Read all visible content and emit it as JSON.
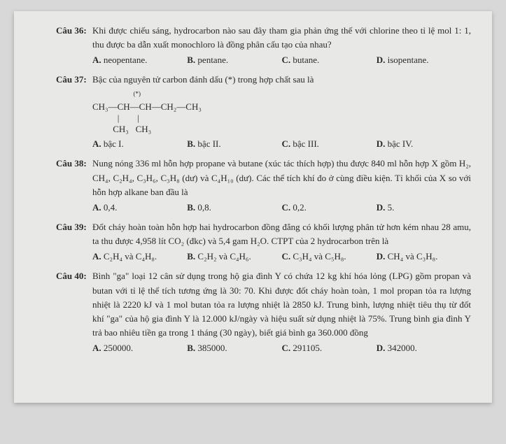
{
  "page": {
    "background_color": "#d8d8d8",
    "paper_color": "#e8e8e6",
    "text_color": "#2a2a2a",
    "font_family": "Times New Roman",
    "base_fontsize": 13,
    "shadow_color": "rgba(0,0,0,0.25)"
  },
  "questions": [
    {
      "label": "Câu 36:",
      "text": "Khi được chiếu sáng, hydrocarbon nào sau đây tham gia phản ứng thế với chlorine theo tỉ lệ mol 1: 1, thu được ba dẫn xuất monochloro là đồng phân cấu tạo của nhau?",
      "options": [
        {
          "letter": "A.",
          "text": "neopentane."
        },
        {
          "letter": "B.",
          "text": "pentane."
        },
        {
          "letter": "C.",
          "text": "butane."
        },
        {
          "letter": "D.",
          "text": "isopentane."
        }
      ]
    },
    {
      "label": "Câu 37:",
      "text": "Bậc của nguyên tử carbon đánh dấu (*) trong hợp chất sau là",
      "formula": {
        "row1": "CH₃—CH—CH—CH₂—CH₃",
        "star_over_index": 2,
        "row2": "           |        |",
        "row3": "         CH₃   CH₃"
      },
      "options": [
        {
          "letter": "A.",
          "text": "bậc I."
        },
        {
          "letter": "B.",
          "text": "bậc II."
        },
        {
          "letter": "C.",
          "text": "bậc III."
        },
        {
          "letter": "D.",
          "text": "bậc IV."
        }
      ]
    },
    {
      "label": "Câu 38:",
      "text": "Nung nóng 336 ml hỗn hợp propane và butane (xúc tác thích hợp) thu được 840 ml hỗn hợp X gồm H₂, CH₄, C₂H₄, C₃H₆, C₃H₈ (dư) và C₄H₁₀ (dư). Các thể tích khí đo ở cùng điều kiện. Tỉ khối của X so với hỗn hợp alkane ban đầu là",
      "options": [
        {
          "letter": "A.",
          "text": "0,4."
        },
        {
          "letter": "B.",
          "text": "0,8."
        },
        {
          "letter": "C.",
          "text": "0,2."
        },
        {
          "letter": "D.",
          "text": "5."
        }
      ]
    },
    {
      "label": "Câu 39:",
      "text": "Đốt cháy hoàn toàn hỗn hợp hai hydrocarbon đồng đẳng có khối lượng phân tử hơn kém nhau 28 amu, ta thu được 4,958 lít CO₂ (đkc) và 5,4 gam H₂O. CTPT của 2 hydrocarbon trên là",
      "options": [
        {
          "letter": "A.",
          "text": "C₂H₄ và C₄H₈."
        },
        {
          "letter": "B.",
          "text": "C₂H₂ và C₄H₆."
        },
        {
          "letter": "C.",
          "text": "C₃H₄ và C₅H₈."
        },
        {
          "letter": "D.",
          "text": "CH₄ và C₃H₈."
        }
      ]
    },
    {
      "label": "Câu 40:",
      "text": "Bình \"ga\" loại 12 cân sử dụng trong hộ gia đình Y có chứa 12 kg khí hóa lỏng (LPG) gồm propan và butan với tỉ lệ thể tích tương ứng là 30: 70. Khi được đốt cháy hoàn toàn, 1 mol propan tỏa ra lượng nhiệt là 2220 kJ và 1 mol butan tỏa ra lượng nhiệt là 2850 kJ. Trung bình, lượng nhiệt tiêu thụ từ đốt khí \"ga\" của hộ gia đình Y là 12.000 kJ/ngày và hiệu suất sử dụng nhiệt là 75%. Trung bình gia đình Y trả bao nhiêu tiền ga trong 1 tháng (30 ngày), biết giá bình ga 360.000 đồng",
      "options": [
        {
          "letter": "A.",
          "text": "250000."
        },
        {
          "letter": "B.",
          "text": "385000."
        },
        {
          "letter": "C.",
          "text": "291105."
        },
        {
          "letter": "D.",
          "text": "342000."
        }
      ]
    }
  ]
}
